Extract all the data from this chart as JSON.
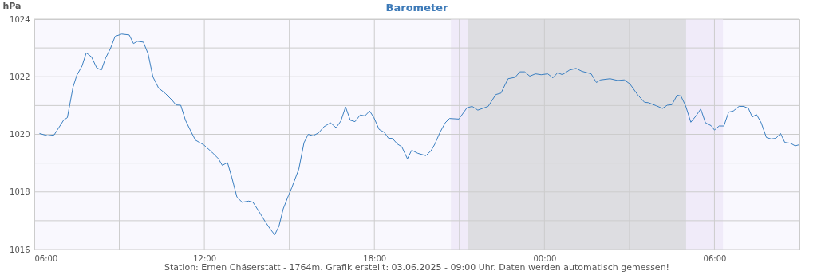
{
  "chart_data": {
    "type": "line",
    "title": "Barometer",
    "ylabel": "hPa",
    "xlim": [
      "2025-06-02T06:00",
      "2025-06-03T09:00"
    ],
    "ylim": [
      1016,
      1024
    ],
    "xticks": [
      {
        "value": "2025-06-02T06:00",
        "label": "06:00"
      },
      {
        "value": "2025-06-02T09:00",
        "label": null
      },
      {
        "value": "2025-06-02T12:00",
        "label": "12:00"
      },
      {
        "value": "2025-06-02T15:00",
        "label": null
      },
      {
        "value": "2025-06-02T18:00",
        "label": "18:00"
      },
      {
        "value": "2025-06-02T21:00",
        "label": null
      },
      {
        "value": "2025-06-03T00:00",
        "label": "00:00"
      },
      {
        "value": "2025-06-03T03:00",
        "label": null
      },
      {
        "value": "2025-06-03T06:00",
        "label": "06:00"
      },
      {
        "value": "2025-06-03T09:00",
        "label": null
      }
    ],
    "yticks": [
      1016,
      {
        "value": 1017,
        "label": null
      },
      1018,
      {
        "value": 1019,
        "label": null
      },
      1020,
      {
        "value": 1021,
        "label": null
      },
      1022,
      {
        "value": 1023,
        "label": null
      },
      1024
    ],
    "grid": true,
    "bands": [
      {
        "axis": "x",
        "from": "2025-06-02T20:42",
        "to": "2025-06-03T06:18",
        "color": "#f0ebf9"
      },
      {
        "axis": "x",
        "from": "2025-06-02T21:18",
        "to": "2025-06-03T05:00",
        "color": "#dddde1"
      }
    ],
    "series": [
      {
        "color": "#3a7fc1",
        "x": [
          "2025-06-02T06:11",
          "2025-06-02T06:28",
          "2025-06-02T06:42",
          "2025-06-02T07:02",
          "2025-06-02T07:10",
          "2025-06-02T07:22",
          "2025-06-02T07:30",
          "2025-06-02T07:41",
          "2025-06-02T07:50",
          "2025-06-02T08:01",
          "2025-06-02T08:12",
          "2025-06-02T08:22",
          "2025-06-02T08:31",
          "2025-06-02T08:41",
          "2025-06-02T08:51",
          "2025-06-02T09:05",
          "2025-06-02T09:21",
          "2025-06-02T09:30",
          "2025-06-02T09:38",
          "2025-06-02T09:51",
          "2025-06-02T10:01",
          "2025-06-02T10:11",
          "2025-06-02T10:23",
          "2025-06-02T10:38",
          "2025-06-02T10:52",
          "2025-06-02T11:00",
          "2025-06-02T11:10",
          "2025-06-02T11:20",
          "2025-06-02T11:31",
          "2025-06-02T11:41",
          "2025-06-02T11:59",
          "2025-06-02T12:16",
          "2025-06-02T12:30",
          "2025-06-02T12:38",
          "2025-06-02T12:49",
          "2025-06-02T12:58",
          "2025-06-02T13:09",
          "2025-06-02T13:20",
          "2025-06-02T13:34",
          "2025-06-02T13:43",
          "2025-06-02T13:56",
          "2025-06-02T14:08",
          "2025-06-02T14:19",
          "2025-06-02T14:29",
          "2025-06-02T14:38",
          "2025-06-02T14:47",
          "2025-06-02T14:58",
          "2025-06-02T15:05",
          "2025-06-02T15:20",
          "2025-06-02T15:31",
          "2025-06-02T15:40",
          "2025-06-02T15:50",
          "2025-06-02T16:02",
          "2025-06-02T16:13",
          "2025-06-02T16:27",
          "2025-06-02T16:39",
          "2025-06-02T16:49",
          "2025-06-02T16:59",
          "2025-06-02T17:09",
          "2025-06-02T17:19",
          "2025-06-02T17:30",
          "2025-06-02T17:40",
          "2025-06-02T17:50",
          "2025-06-02T17:59",
          "2025-06-02T18:10",
          "2025-06-02T18:21",
          "2025-06-02T18:30",
          "2025-06-02T18:38",
          "2025-06-02T18:49",
          "2025-06-02T18:58",
          "2025-06-02T19:10",
          "2025-06-02T19:19",
          "2025-06-02T19:32",
          "2025-06-02T19:49",
          "2025-06-02T20:00",
          "2025-06-02T20:08",
          "2025-06-02T20:19",
          "2025-06-02T20:30",
          "2025-06-02T20:39",
          "2025-06-02T20:59",
          "2025-06-02T21:16",
          "2025-06-02T21:27",
          "2025-06-02T21:39",
          "2025-06-02T22:01",
          "2025-06-02T22:17",
          "2025-06-02T22:28",
          "2025-06-02T22:43",
          "2025-06-02T22:58",
          "2025-06-02T23:08",
          "2025-06-02T23:18",
          "2025-06-02T23:29",
          "2025-06-02T23:41",
          "2025-06-02T23:53",
          "2025-06-03T00:07",
          "2025-06-03T00:18",
          "2025-06-03T00:28",
          "2025-06-03T00:38",
          "2025-06-03T00:53",
          "2025-06-03T01:07",
          "2025-06-03T01:19",
          "2025-06-03T01:39",
          "2025-06-03T01:50",
          "2025-06-03T01:59",
          "2025-06-03T02:19",
          "2025-06-03T02:35",
          "2025-06-03T02:49",
          "2025-06-03T03:01",
          "2025-06-03T03:18",
          "2025-06-03T03:32",
          "2025-06-03T03:40",
          "2025-06-03T03:57",
          "2025-06-03T04:10",
          "2025-06-03T04:20",
          "2025-06-03T04:30",
          "2025-06-03T04:41",
          "2025-06-03T04:49",
          "2025-06-03T04:59",
          "2025-06-03T05:10",
          "2025-06-03T05:21",
          "2025-06-03T05:31",
          "2025-06-03T05:41",
          "2025-06-03T05:53",
          "2025-06-03T06:00",
          "2025-06-03T06:10",
          "2025-06-03T06:20",
          "2025-06-03T06:30",
          "2025-06-03T06:40",
          "2025-06-03T06:52",
          "2025-06-03T07:02",
          "2025-06-03T07:12",
          "2025-06-03T07:20",
          "2025-06-03T07:29",
          "2025-06-03T07:39",
          "2025-06-03T07:50",
          "2025-06-03T08:00",
          "2025-06-03T08:10",
          "2025-06-03T08:20",
          "2025-06-03T08:29",
          "2025-06-03T08:41",
          "2025-06-03T08:51",
          "2025-06-03T09:00"
        ],
        "values": [
          1020.03,
          1019.95,
          1019.98,
          1020.49,
          1020.58,
          1021.64,
          1022.05,
          1022.37,
          1022.83,
          1022.69,
          1022.31,
          1022.23,
          1022.65,
          1022.97,
          1023.4,
          1023.48,
          1023.45,
          1023.15,
          1023.23,
          1023.2,
          1022.79,
          1022.0,
          1021.61,
          1021.41,
          1021.18,
          1021.02,
          1021.01,
          1020.49,
          1020.12,
          1019.8,
          1019.63,
          1019.38,
          1019.15,
          1018.92,
          1019.02,
          1018.51,
          1017.82,
          1017.64,
          1017.68,
          1017.64,
          1017.31,
          1016.99,
          1016.72,
          1016.51,
          1016.81,
          1017.41,
          1017.87,
          1018.14,
          1018.79,
          1019.71,
          1020.0,
          1019.95,
          1020.05,
          1020.26,
          1020.4,
          1020.23,
          1020.46,
          1020.95,
          1020.49,
          1020.44,
          1020.67,
          1020.64,
          1020.81,
          1020.58,
          1020.17,
          1020.07,
          1019.86,
          1019.86,
          1019.66,
          1019.57,
          1019.15,
          1019.45,
          1019.34,
          1019.26,
          1019.43,
          1019.66,
          1020.07,
          1020.4,
          1020.55,
          1020.53,
          1020.92,
          1020.97,
          1020.84,
          1020.97,
          1021.38,
          1021.43,
          1021.93,
          1021.98,
          1022.17,
          1022.17,
          1022.02,
          1022.1,
          1022.07,
          1022.1,
          1021.96,
          1022.14,
          1022.07,
          1022.23,
          1022.29,
          1022.19,
          1022.1,
          1021.8,
          1021.89,
          1021.93,
          1021.87,
          1021.89,
          1021.75,
          1021.36,
          1021.11,
          1021.1,
          1020.99,
          1020.9,
          1021.01,
          1021.03,
          1021.36,
          1021.33,
          1020.99,
          1020.42,
          1020.64,
          1020.88,
          1020.4,
          1020.3,
          1020.15,
          1020.29,
          1020.29,
          1020.77,
          1020.81,
          1020.97,
          1020.97,
          1020.9,
          1020.6,
          1020.69,
          1020.4,
          1019.89,
          1019.84,
          1019.86,
          1020.03,
          1019.72,
          1019.69,
          1019.6,
          1019.64
        ]
      }
    ],
    "annotations": [
      "Station: Ernen Chäserstatt - 1764m. Grafik erstellt: 03.06.2025 - 09:00 Uhr. Daten werden automatisch gemessen!"
    ]
  }
}
